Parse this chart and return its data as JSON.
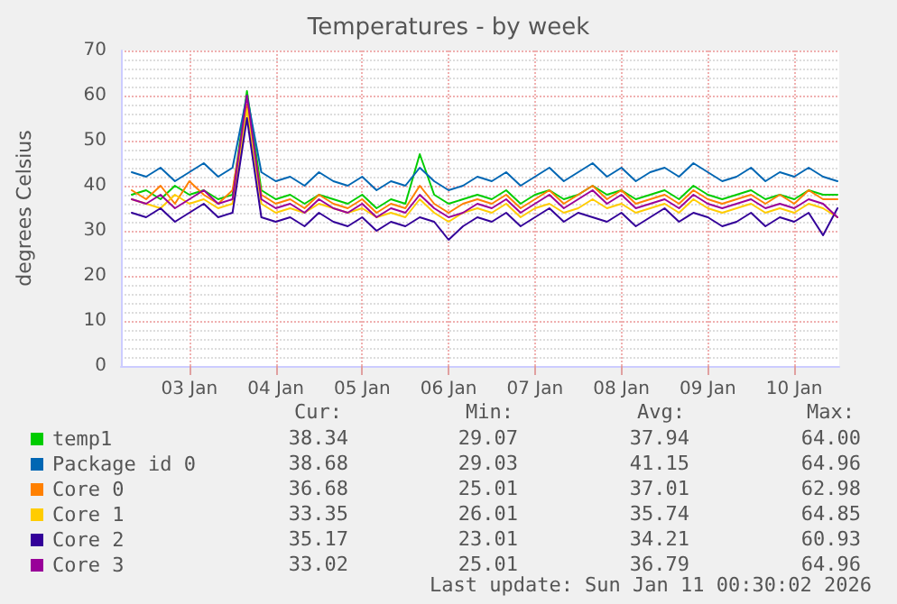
{
  "chart_data": {
    "type": "line",
    "title": "Temperatures - by week",
    "ylabel": "degrees Celsius",
    "x": [
      "2026-01-02T20:00",
      "2026-01-03T00:00",
      "2026-01-03T04:00",
      "2026-01-03T08:00",
      "2026-01-03T12:00",
      "2026-01-03T16:00",
      "2026-01-03T20:00",
      "2026-01-04T00:00",
      "2026-01-04T04:00",
      "2026-01-04T08:00",
      "2026-01-04T12:00",
      "2026-01-04T16:00",
      "2026-01-04T20:00",
      "2026-01-05T00:00",
      "2026-01-05T04:00",
      "2026-01-05T08:00",
      "2026-01-05T12:00",
      "2026-01-05T16:00",
      "2026-01-05T20:00",
      "2026-01-06T00:00",
      "2026-01-06T04:00",
      "2026-01-06T08:00",
      "2026-01-06T12:00",
      "2026-01-06T16:00",
      "2026-01-06T20:00",
      "2026-01-07T00:00",
      "2026-01-07T04:00",
      "2026-01-07T08:00",
      "2026-01-07T12:00",
      "2026-01-07T16:00",
      "2026-01-07T20:00",
      "2026-01-08T00:00",
      "2026-01-08T04:00",
      "2026-01-08T08:00",
      "2026-01-08T12:00",
      "2026-01-08T16:00",
      "2026-01-08T20:00",
      "2026-01-09T00:00",
      "2026-01-09T04:00",
      "2026-01-09T08:00",
      "2026-01-09T12:00",
      "2026-01-09T16:00",
      "2026-01-09T20:00",
      "2026-01-10T00:00",
      "2026-01-10T04:00",
      "2026-01-10T08:00",
      "2026-01-10T12:00",
      "2026-01-10T16:00",
      "2026-01-10T20:00",
      "2026-01-11T00:00"
    ],
    "series": [
      {
        "name": "temp1",
        "color": "#00cc00",
        "values": [
          38,
          39,
          37,
          40,
          38,
          39,
          37,
          38,
          61,
          39,
          37,
          38,
          36,
          38,
          37,
          36,
          38,
          35,
          37,
          36,
          47,
          38,
          36,
          37,
          38,
          37,
          39,
          36,
          38,
          39,
          37,
          38,
          40,
          38,
          39,
          37,
          38,
          39,
          37,
          40,
          38,
          37,
          38,
          39,
          37,
          38,
          37,
          39,
          38,
          38
        ]
      },
      {
        "name": "Package id 0",
        "color": "#0066b3",
        "values": [
          43,
          42,
          44,
          41,
          43,
          45,
          42,
          44,
          60,
          43,
          41,
          42,
          40,
          43,
          41,
          40,
          42,
          39,
          41,
          40,
          44,
          41,
          39,
          40,
          42,
          41,
          43,
          40,
          42,
          44,
          41,
          43,
          45,
          42,
          44,
          41,
          43,
          44,
          42,
          45,
          43,
          41,
          42,
          44,
          41,
          43,
          42,
          44,
          42,
          41
        ]
      },
      {
        "name": "Core 0",
        "color": "#ff8000",
        "values": [
          39,
          37,
          40,
          36,
          41,
          38,
          36,
          39,
          58,
          38,
          36,
          37,
          35,
          38,
          36,
          35,
          37,
          34,
          36,
          35,
          40,
          36,
          34,
          36,
          37,
          36,
          38,
          35,
          37,
          39,
          36,
          38,
          40,
          37,
          39,
          36,
          37,
          38,
          36,
          39,
          37,
          36,
          37,
          38,
          36,
          38,
          36,
          39,
          37,
          37
        ]
      },
      {
        "name": "Core 1",
        "color": "#ffcc00",
        "values": [
          37,
          36,
          35,
          38,
          36,
          37,
          35,
          36,
          57,
          36,
          34,
          35,
          34,
          36,
          35,
          34,
          35,
          33,
          34,
          33,
          37,
          34,
          32,
          34,
          35,
          34,
          36,
          33,
          35,
          36,
          34,
          35,
          37,
          35,
          36,
          34,
          35,
          36,
          34,
          37,
          35,
          34,
          35,
          36,
          34,
          35,
          34,
          36,
          35,
          33
        ]
      },
      {
        "name": "Core 2",
        "color": "#330099",
        "values": [
          34,
          33,
          35,
          32,
          34,
          36,
          33,
          34,
          55,
          33,
          32,
          33,
          31,
          34,
          32,
          31,
          33,
          30,
          32,
          31,
          33,
          32,
          28,
          31,
          33,
          32,
          34,
          31,
          33,
          35,
          32,
          34,
          33,
          32,
          34,
          31,
          33,
          35,
          32,
          34,
          33,
          31,
          32,
          34,
          31,
          33,
          32,
          34,
          29,
          35
        ]
      },
      {
        "name": "Core 3",
        "color": "#990099",
        "values": [
          37,
          36,
          38,
          35,
          37,
          39,
          36,
          37,
          60,
          37,
          35,
          36,
          34,
          37,
          35,
          34,
          36,
          33,
          35,
          34,
          38,
          35,
          33,
          34,
          36,
          35,
          37,
          34,
          36,
          38,
          35,
          37,
          39,
          36,
          38,
          35,
          36,
          37,
          35,
          38,
          36,
          35,
          36,
          37,
          35,
          36,
          35,
          37,
          36,
          33
        ]
      }
    ],
    "xlim": [
      "2026-01-02T17:00",
      "2026-01-11T00:30"
    ],
    "xticks": [
      {
        "value": "2026-01-03T12:00",
        "label": "03 Jan"
      },
      {
        "value": "2026-01-04T12:00",
        "label": "04 Jan"
      },
      {
        "value": "2026-01-05T12:00",
        "label": "05 Jan"
      },
      {
        "value": "2026-01-06T12:00",
        "label": "06 Jan"
      },
      {
        "value": "2026-01-07T12:00",
        "label": "07 Jan"
      },
      {
        "value": "2026-01-08T12:00",
        "label": "08 Jan"
      },
      {
        "value": "2026-01-09T12:00",
        "label": "09 Jan"
      },
      {
        "value": "2026-01-10T12:00",
        "label": "10 Jan"
      }
    ],
    "ylim": [
      0,
      70
    ],
    "yticks": [
      0,
      10,
      20,
      30,
      40,
      50,
      60,
      70
    ],
    "grid": true,
    "legend": "bottom left",
    "marker": "none",
    "line_style": "solid",
    "annotations": [
      "Cur:",
      "Min:",
      "Avg:",
      "Max:",
      "38.34",
      "29.07",
      "37.94",
      "64.00",
      "38.68",
      "29.03",
      "41.15",
      "64.96",
      "36.68",
      "25.01",
      "37.01",
      "62.98",
      "33.35",
      "26.01",
      "35.74",
      "64.85",
      "35.17",
      "23.01",
      "34.21",
      "60.93",
      "33.02",
      "25.01",
      "36.79",
      "64.96",
      "Last update: Sun Jan 11 00:30:02 2026"
    ]
  }
}
